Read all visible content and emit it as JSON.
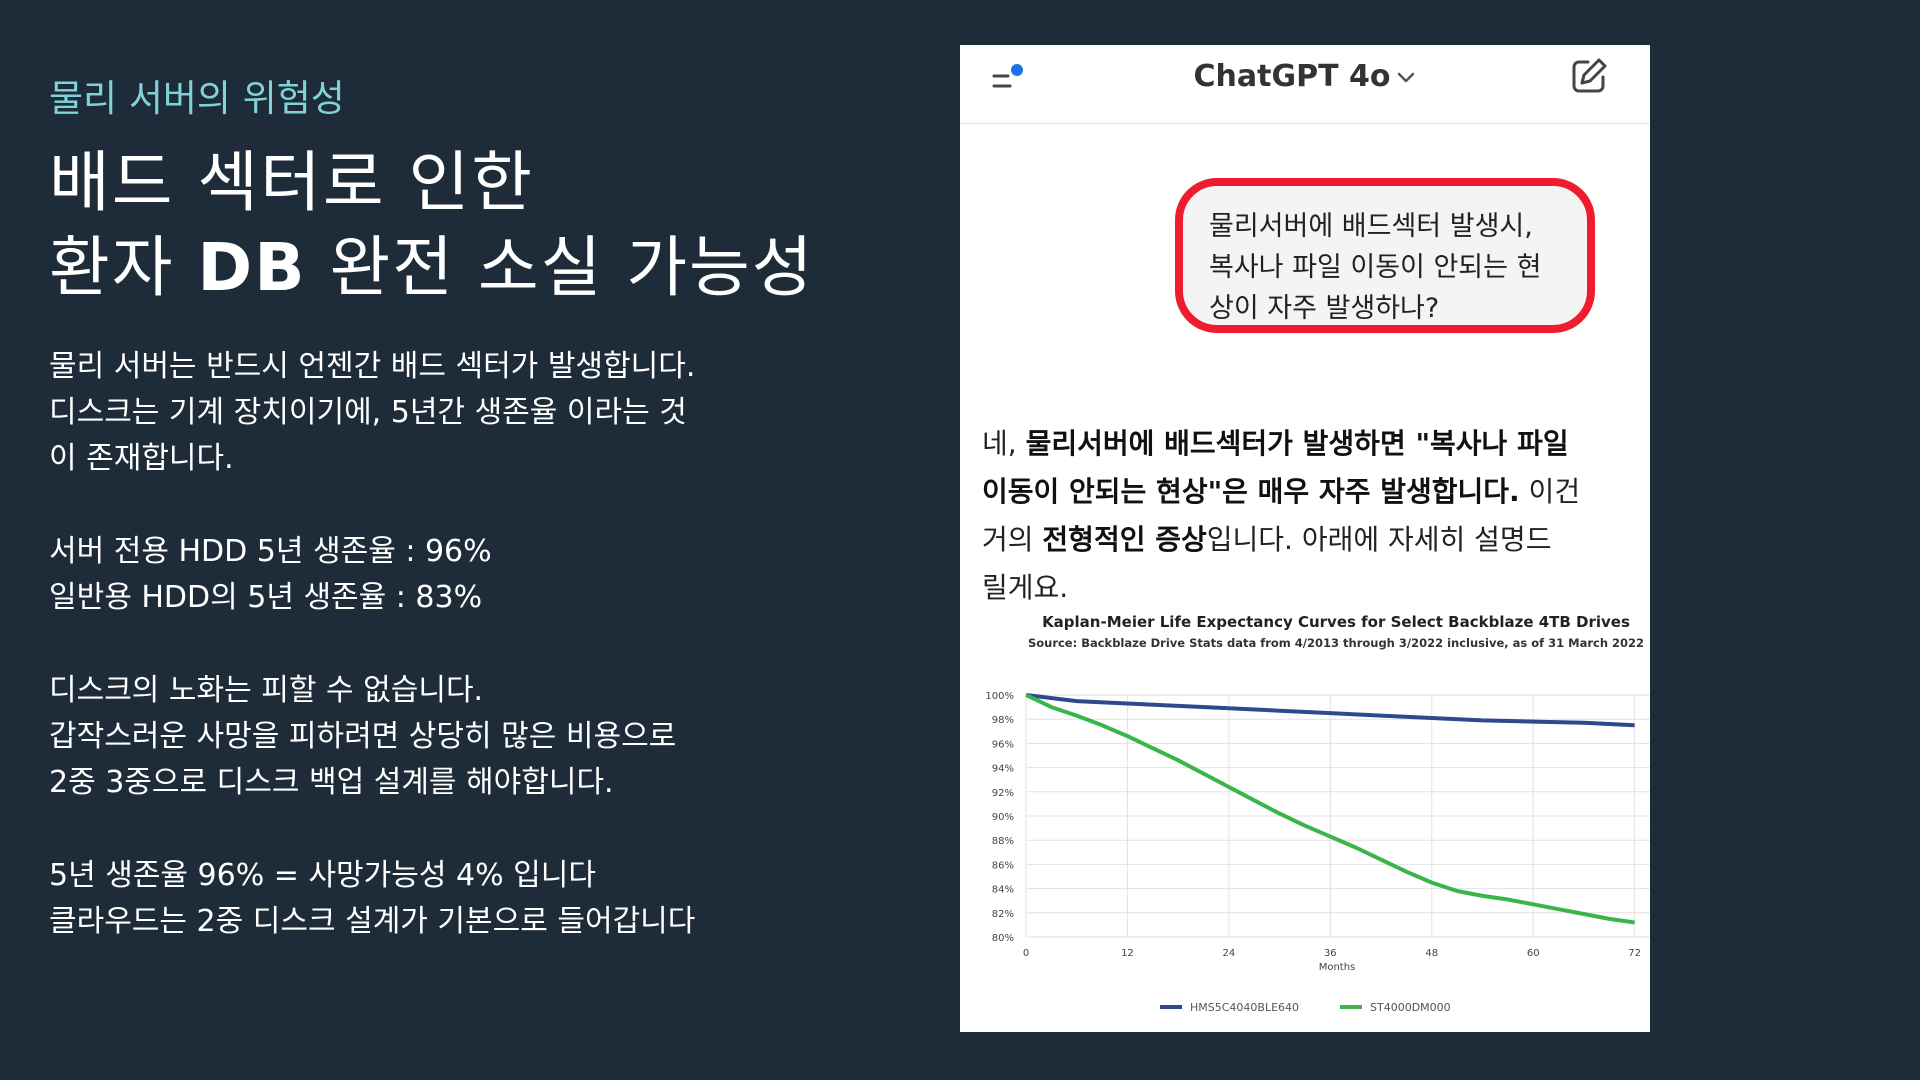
{
  "slide": {
    "kicker": "물리 서버의 위험성",
    "headline": [
      "배드 섹터로 인한",
      "환자 ",
      "DB",
      " 완전 소실 가능성"
    ],
    "paragraphs": [
      [
        "물리 서버는 반드시 언젠간 배드 섹터가 발생합니다.",
        "디스크는 기계 장치이기에, 5년간 생존율 이라는 것",
        "이 존재합니다."
      ],
      [
        "서버 전용 HDD 5년 생존율 : 96%",
        "일반용 HDD의 5년 생존율 : 83%"
      ],
      [
        "디스크의 노화는 피할 수 없습니다.",
        "갑작스러운 사망을 피하려면 상당히 많은 비용으로",
        "2중 3중으로 디스크 백업 설계를 해야합니다."
      ],
      [
        "5년 생존율 96% = 사망가능성 4% 입니다",
        "클라우드는 2중 디스크 설계가 기본으로 들어갑니다"
      ]
    ]
  },
  "chatgpt": {
    "title": "ChatGPT 4o",
    "icons": {
      "menu": "menu-icon",
      "dropdown": "chevron-down-icon",
      "new_chat": "edit-icon"
    },
    "user_message": [
      "물리서버에 배드섹터 발생시,",
      "복사나 파일 이동이 안되는 현",
      "상이 자주 발생하나?"
    ],
    "reply": {
      "l1a": "네, ",
      "l1b": "물리서버에 배드섹터가 발생하면 \"복사나 파일",
      "l2a": "이동이 안되는 현상\"은 매우 자주 발생합니다.",
      "l2b": " 이건",
      "l3a": "거의 ",
      "l3b": "전형적인 증상",
      "l3c": "입니다. 아래에 자세히 설명드",
      "l4": "릴게요."
    },
    "colors": {
      "highlight_border": "#ee1c2e",
      "bubble_bg": "#f4f4f4"
    }
  },
  "chart_data": {
    "type": "line",
    "title": "Kaplan-Meier Life Expectancy Curves for Select Backblaze 4TB Drives",
    "subtitle": "Source: Backblaze Drive Stats data from 4/2013 through 3/2022 inclusive, as of 31 March 2022",
    "xlabel": "Months",
    "ylabel": "",
    "xlim": [
      0,
      72
    ],
    "ylim": [
      80,
      100
    ],
    "x_ticks": [
      "0",
      "12",
      "24",
      "36",
      "48",
      "60",
      "72"
    ],
    "y_ticks": [
      "100%",
      "98%",
      "96%",
      "94%",
      "92%",
      "90%",
      "88%",
      "86%",
      "84%",
      "82%",
      "80%"
    ],
    "grid": true,
    "legend": "bottom",
    "series": [
      {
        "name": "HMS5C4040BLE640",
        "color": "#2f4a8a",
        "x": [
          0,
          6,
          12,
          18,
          24,
          30,
          36,
          42,
          48,
          54,
          60,
          66,
          72
        ],
        "y": [
          100,
          99.5,
          99.3,
          99.1,
          98.9,
          98.7,
          98.5,
          98.3,
          98.1,
          97.9,
          97.8,
          97.7,
          97.5
        ]
      },
      {
        "name": "ST4000DM000",
        "color": "#3bb54a",
        "x": [
          0,
          3,
          6,
          9,
          12,
          15,
          18,
          21,
          24,
          27,
          30,
          33,
          36,
          39,
          42,
          45,
          48,
          51,
          54,
          57,
          60,
          63,
          66,
          69,
          72
        ],
        "y": [
          100,
          99.0,
          98.3,
          97.5,
          96.6,
          95.6,
          94.6,
          93.5,
          92.4,
          91.3,
          90.2,
          89.2,
          88.3,
          87.4,
          86.4,
          85.4,
          84.5,
          83.8,
          83.4,
          83.1,
          82.7,
          82.3,
          81.9,
          81.5,
          81.2
        ]
      }
    ]
  }
}
